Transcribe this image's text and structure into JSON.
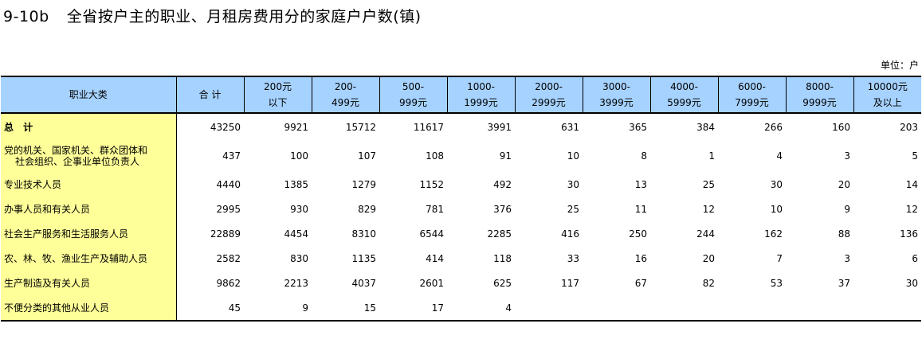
{
  "title": {
    "code": "9-10b",
    "text": "全省按户主的职业、月租房费用分的家庭户户数(镇)"
  },
  "unit": "单位：户",
  "table": {
    "headers": [
      [
        "职业大类"
      ],
      [
        "合  计"
      ],
      [
        "200元",
        "以下"
      ],
      [
        "200-",
        "499元"
      ],
      [
        "500-",
        "999元"
      ],
      [
        "1000-",
        "1999元"
      ],
      [
        "2000-",
        "2999元"
      ],
      [
        "3000-",
        "3999元"
      ],
      [
        "4000-",
        "5999元"
      ],
      [
        "6000-",
        "7999元"
      ],
      [
        "8000-",
        "9999元"
      ],
      [
        "10000元",
        "及以上"
      ]
    ],
    "rows": [
      {
        "label": [
          "总  计"
        ],
        "values": [
          "43250",
          "9921",
          "15712",
          "11617",
          "3991",
          "631",
          "365",
          "384",
          "266",
          "160",
          "203"
        ]
      },
      {
        "label": [
          "党的机关、国家机关、群众团体和",
          "社会组织、企事业单位负责人"
        ],
        "values": [
          "437",
          "100",
          "107",
          "108",
          "91",
          "10",
          "8",
          "1",
          "4",
          "3",
          "5"
        ]
      },
      {
        "label": [
          "专业技术人员"
        ],
        "values": [
          "4440",
          "1385",
          "1279",
          "1152",
          "492",
          "30",
          "13",
          "25",
          "30",
          "20",
          "14"
        ]
      },
      {
        "label": [
          "办事人员和有关人员"
        ],
        "values": [
          "2995",
          "930",
          "829",
          "781",
          "376",
          "25",
          "11",
          "12",
          "10",
          "9",
          "12"
        ]
      },
      {
        "label": [
          "社会生产服务和生活服务人员"
        ],
        "values": [
          "22889",
          "4454",
          "8310",
          "6544",
          "2285",
          "416",
          "250",
          "244",
          "162",
          "88",
          "136"
        ]
      },
      {
        "label": [
          "农、林、牧、渔业生产及辅助人员"
        ],
        "values": [
          "2582",
          "830",
          "1135",
          "414",
          "118",
          "33",
          "16",
          "20",
          "7",
          "3",
          "6"
        ]
      },
      {
        "label": [
          "生产制造及有关人员"
        ],
        "values": [
          "9862",
          "2213",
          "4037",
          "2601",
          "625",
          "117",
          "67",
          "82",
          "53",
          "37",
          "30"
        ]
      },
      {
        "label": [
          "不便分类的其他从业人员"
        ],
        "values": [
          "45",
          "9",
          "15",
          "17",
          "4",
          "",
          "",
          "",
          "",
          "",
          ""
        ]
      }
    ]
  }
}
